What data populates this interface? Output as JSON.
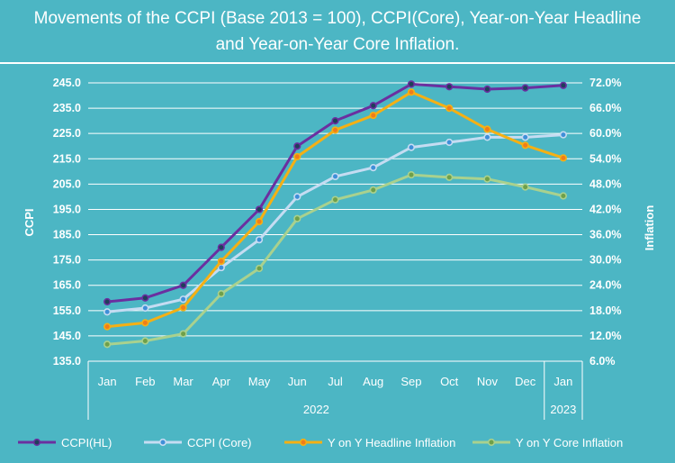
{
  "chart_data": {
    "type": "line",
    "title_line1": "Movements of the CCPI (Base 2013 = 100), CCPI(Core), Year-on-Year Headline",
    "title_line2": "and Year-on-Year Core Inflation.",
    "ylabel_left": "CCPI",
    "ylabel_right": "Inflation",
    "y_left_ticks": [
      "245.0",
      "235.0",
      "225.0",
      "215.0",
      "205.0",
      "195.0",
      "185.0",
      "175.0",
      "165.0",
      "155.0",
      "145.0",
      "135.0"
    ],
    "y_right_ticks": [
      "72.0%",
      "66.0%",
      "60.0%",
      "54.0%",
      "48.0%",
      "42.0%",
      "36.0%",
      "30.0%",
      "24.0%",
      "18.0%",
      "12.0%",
      "6.0%"
    ],
    "ylim_left": [
      135,
      245
    ],
    "ylim_right": [
      6,
      72
    ],
    "categories": [
      "Jan",
      "Feb",
      "Mar",
      "Apr",
      "May",
      "Jun",
      "Jul",
      "Aug",
      "Sep",
      "Oct",
      "Nov",
      "Dec",
      "Jan"
    ],
    "year_groups": [
      {
        "label": "2022",
        "count": 12
      },
      {
        "label": "2023",
        "count": 1
      }
    ],
    "series": [
      {
        "name": "CCPI(HL)",
        "axis": "left",
        "color": "#6b2fa0",
        "marker_fill": "#1f3f5a",
        "values": [
          158.5,
          160.0,
          165.0,
          180.0,
          195.0,
          220.0,
          230.0,
          236.0,
          244.5,
          243.5,
          242.5,
          243.0,
          244.0
        ]
      },
      {
        "name": "CCPI (Core)",
        "axis": "left",
        "color": "#c5dcf2",
        "marker_fill": "#3f8fd8",
        "values": [
          154.5,
          156.0,
          159.5,
          172.0,
          183.0,
          200.0,
          208.0,
          211.5,
          219.5,
          221.5,
          223.5,
          223.5,
          224.5
        ]
      },
      {
        "name": "Y on Y Headline Inflation",
        "axis": "right",
        "color": "#f5b014",
        "marker_fill": "#f07d1a",
        "values": [
          14.2,
          15.1,
          18.7,
          29.7,
          39.1,
          54.5,
          60.8,
          64.3,
          69.8,
          66.0,
          61.0,
          57.2,
          54.2
        ]
      },
      {
        "name": "Y on Y Core Inflation",
        "axis": "right",
        "color": "#a9d18e",
        "marker_fill": "#6fa04a",
        "values": [
          10.0,
          10.8,
          12.5,
          22.0,
          28.0,
          39.8,
          44.3,
          46.6,
          50.2,
          49.6,
          49.2,
          47.3,
          45.2
        ]
      }
    ]
  }
}
